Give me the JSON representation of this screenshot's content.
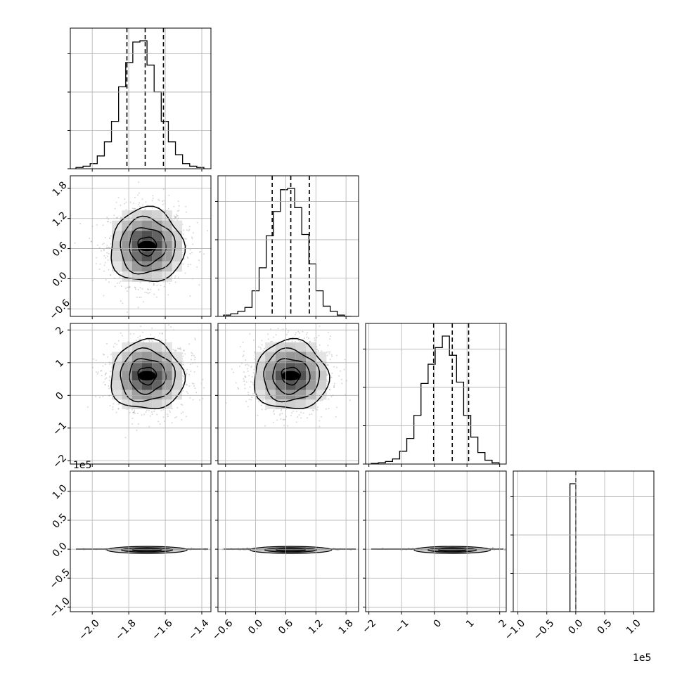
{
  "chart_data": {
    "type": "corner",
    "params": [
      {
        "ticks": [
          -2.0,
          -1.8,
          -1.6,
          -1.4
        ],
        "tick_labels": [
          "−2.0",
          "−1.8",
          "−1.6",
          "−1.4"
        ],
        "range": [
          -2.12,
          -1.35
        ],
        "mean": -1.71,
        "sd": 0.1,
        "quantiles": [
          -1.81,
          -1.71,
          -1.61
        ]
      },
      {
        "ticks": [
          -0.6,
          0.0,
          0.6,
          1.2,
          1.8
        ],
        "tick_labels": [
          "−0.6",
          "0.0",
          "0.6",
          "1.2",
          "1.8"
        ],
        "range": [
          -0.75,
          2.05
        ],
        "mean": 0.7,
        "sd": 0.37,
        "quantiles": [
          0.33,
          0.7,
          1.07
        ]
      },
      {
        "ticks": [
          -2,
          -1,
          0,
          1,
          2
        ],
        "tick_labels": [
          "−2",
          "−1",
          "0",
          "1",
          "2"
        ],
        "range": [
          -2.1,
          2.2
        ],
        "mean": 0.55,
        "sd": 0.53,
        "quantiles": [
          -0.02,
          0.55,
          1.05
        ]
      },
      {
        "ticks": [
          -1.0,
          -0.5,
          0.0,
          0.5,
          1.0
        ],
        "tick_labels": [
          "−1.0",
          "−0.5",
          "0.0",
          "0.5",
          "1.0"
        ],
        "range": [
          -1.08,
          1.35
        ],
        "exponent_label": "1e5",
        "spike_range": [
          -0.1,
          0.0
        ],
        "median": 0.0
      }
    ],
    "histograms": [
      [
        0.01,
        0.02,
        0.04,
        0.1,
        0.21,
        0.37,
        0.64,
        0.83,
        0.99,
        1.0,
        0.81,
        0.6,
        0.37,
        0.21,
        0.11,
        0.04,
        0.02,
        0.01
      ],
      [
        0.01,
        0.02,
        0.04,
        0.07,
        0.2,
        0.38,
        0.63,
        0.82,
        0.99,
        1.0,
        0.85,
        0.64,
        0.41,
        0.2,
        0.08,
        0.04,
        0.01,
        0.0
      ],
      [
        0.005,
        0.01,
        0.02,
        0.04,
        0.1,
        0.2,
        0.38,
        0.63,
        0.78,
        0.91,
        1.0,
        0.85,
        0.64,
        0.38,
        0.21,
        0.09,
        0.03,
        0.01
      ],
      [
        0,
        0,
        0,
        0,
        0,
        0,
        0,
        0,
        0,
        0,
        1.0,
        0,
        0,
        0,
        0,
        0,
        0,
        0,
        0,
        0,
        0,
        0,
        0,
        0
      ]
    ],
    "pairs": [
      {
        "row": 1,
        "col": 0,
        "cx": -1.7,
        "cy": 0.65,
        "levels": [
          [
            0.025,
            0.15
          ],
          [
            0.05,
            0.3
          ],
          [
            0.085,
            0.48
          ],
          [
            0.12,
            0.65
          ]
        ]
      },
      {
        "row": 2,
        "col": 0,
        "cx": -1.7,
        "cy": 0.6,
        "levels": [
          [
            0.025,
            0.22
          ],
          [
            0.05,
            0.45
          ],
          [
            0.085,
            0.72
          ],
          [
            0.12,
            0.97
          ]
        ]
      },
      {
        "row": 2,
        "col": 1,
        "cx": 0.7,
        "cy": 0.6,
        "levels": [
          [
            0.09,
            0.22
          ],
          [
            0.18,
            0.45
          ],
          [
            0.3,
            0.72
          ],
          [
            0.42,
            0.97
          ]
        ]
      },
      {
        "row": 3,
        "col": 0,
        "cx": -1.7,
        "cy": 0.0
      },
      {
        "row": 3,
        "col": 1,
        "cx": 0.7,
        "cy": 0.0
      },
      {
        "row": 3,
        "col": 2,
        "cx": 0.55,
        "cy": 0.0
      }
    ],
    "grid": true
  }
}
